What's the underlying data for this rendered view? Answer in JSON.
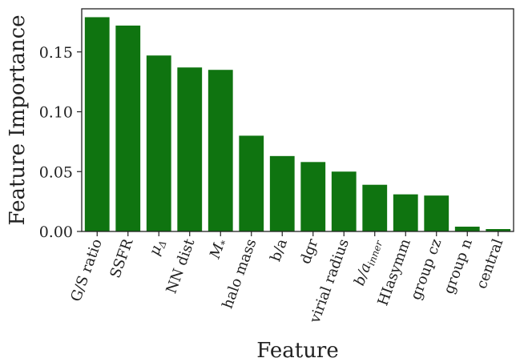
{
  "chart_data": {
    "type": "bar",
    "title": "",
    "xlabel": "Feature",
    "ylabel": "Feature Importance",
    "ylim": [
      0,
      0.186
    ],
    "yticks": [
      "0.00",
      "0.05",
      "0.10",
      "0.15"
    ],
    "bar_color": "#0f7410",
    "grid": false,
    "categories": [
      {
        "label": "G/S ratio"
      },
      {
        "label": "SSFR"
      },
      {
        "label": "μ",
        "sub": "Δ"
      },
      {
        "label": "NN dist"
      },
      {
        "label": "M",
        "sub": "*"
      },
      {
        "label": "halo mass"
      },
      {
        "label": "b/a"
      },
      {
        "label": "dgr"
      },
      {
        "label": "virial radius"
      },
      {
        "label": "b/a",
        "sub": "inner"
      },
      {
        "label": "HIasymm"
      },
      {
        "label": "group cz"
      },
      {
        "label": "group n"
      },
      {
        "label": "central"
      }
    ],
    "values": [
      0.179,
      0.172,
      0.147,
      0.137,
      0.135,
      0.08,
      0.063,
      0.058,
      0.05,
      0.039,
      0.031,
      0.03,
      0.004,
      0.002
    ]
  }
}
